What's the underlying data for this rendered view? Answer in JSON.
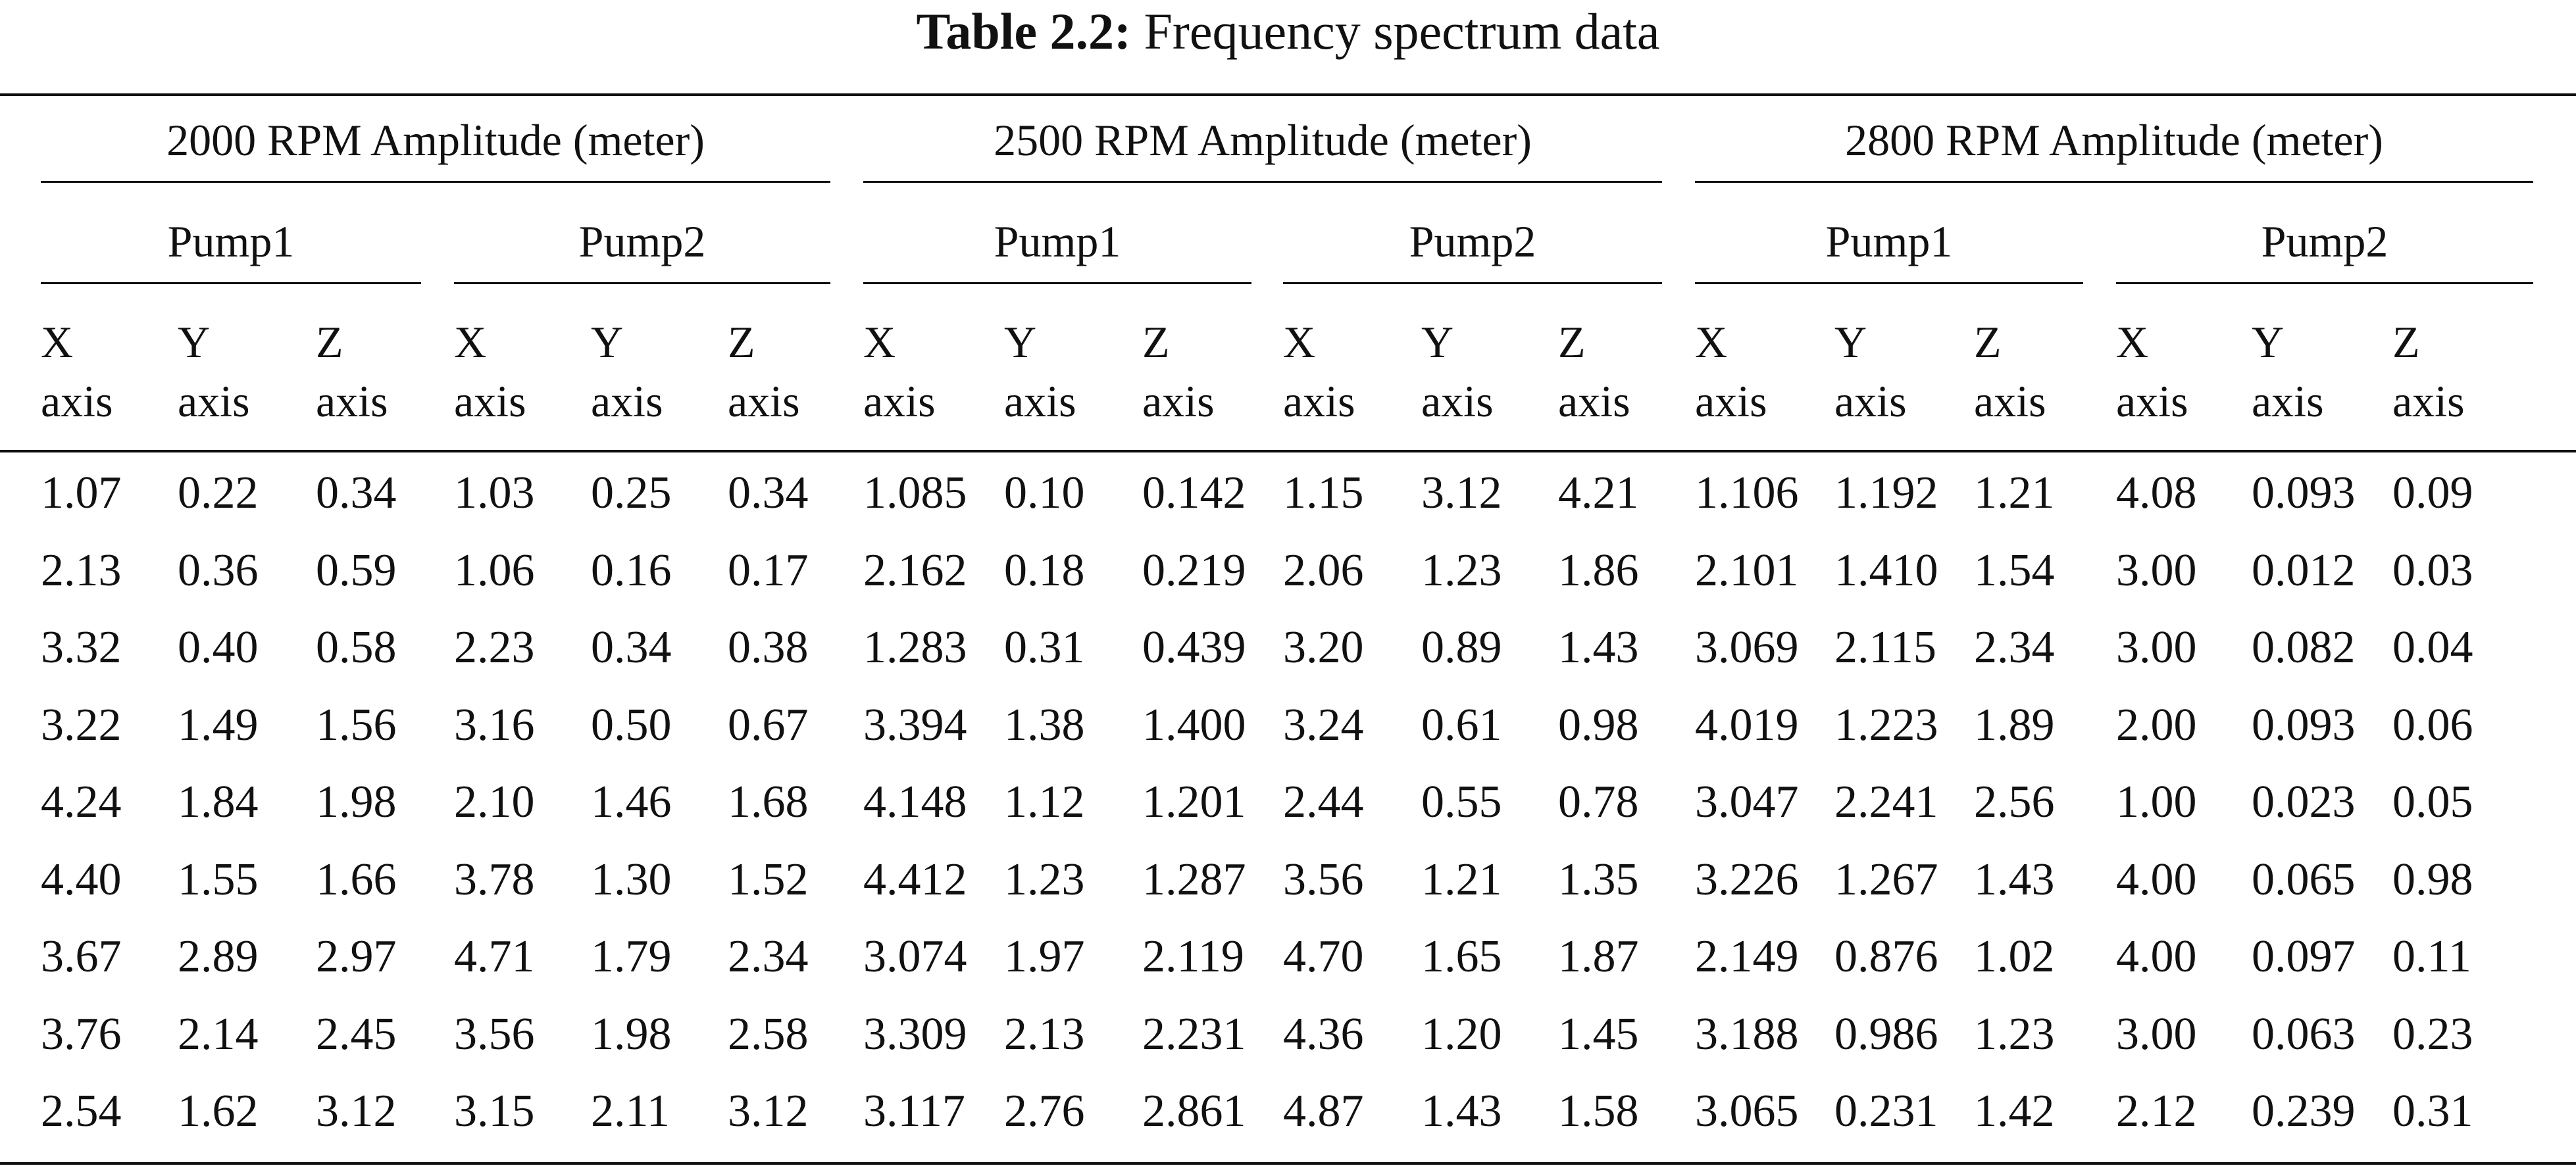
{
  "caption": {
    "label": "Table 2.2:",
    "title": "Frequency spectrum data"
  },
  "groups": [
    {
      "title": "2000 RPM Amplitude (meter)",
      "pumps": [
        "Pump1",
        "Pump2"
      ]
    },
    {
      "title": "2500 RPM Amplitude (meter)",
      "pumps": [
        "Pump1",
        "Pump2"
      ]
    },
    {
      "title": "2800 RPM Amplitude (meter)",
      "pumps": [
        "Pump1",
        "Pump2"
      ]
    }
  ],
  "axis_labels": [
    [
      "X",
      "axis"
    ],
    [
      "Y",
      "axis"
    ],
    [
      "Z",
      "axis"
    ],
    [
      "X",
      "axis"
    ],
    [
      "Y",
      "axis"
    ],
    [
      "Z",
      "axis"
    ],
    [
      "X",
      "axis"
    ],
    [
      "Y",
      "axis"
    ],
    [
      "Z",
      "axis"
    ],
    [
      "X",
      "axis"
    ],
    [
      "Y",
      "axis"
    ],
    [
      "Z",
      "axis"
    ],
    [
      "X",
      "axis"
    ],
    [
      "Y",
      "axis"
    ],
    [
      "Z",
      "axis"
    ],
    [
      "X",
      "axis"
    ],
    [
      "Y",
      "axis"
    ],
    [
      "Z",
      "axis"
    ]
  ],
  "rows": [
    [
      "1.07",
      "0.22",
      "0.34",
      "1.03",
      "0.25",
      "0.34",
      "1.085",
      "0.10",
      "0.142",
      "1.15",
      "3.12",
      "4.21",
      "1.106",
      "1.192",
      "1.21",
      "4.08",
      "0.093",
      "0.09"
    ],
    [
      "2.13",
      "0.36",
      "0.59",
      "1.06",
      "0.16",
      "0.17",
      "2.162",
      "0.18",
      "0.219",
      "2.06",
      "1.23",
      "1.86",
      "2.101",
      "1.410",
      "1.54",
      "3.00",
      "0.012",
      "0.03"
    ],
    [
      "3.32",
      "0.40",
      "0.58",
      "2.23",
      "0.34",
      "0.38",
      "1.283",
      "0.31",
      "0.439",
      "3.20",
      "0.89",
      "1.43",
      "3.069",
      "2.115",
      "2.34",
      "3.00",
      "0.082",
      "0.04"
    ],
    [
      "3.22",
      "1.49",
      "1.56",
      "3.16",
      "0.50",
      "0.67",
      "3.394",
      "1.38",
      "1.400",
      "3.24",
      "0.61",
      "0.98",
      "4.019",
      "1.223",
      "1.89",
      "2.00",
      "0.093",
      "0.06"
    ],
    [
      "4.24",
      "1.84",
      "1.98",
      "2.10",
      "1.46",
      "1.68",
      "4.148",
      "1.12",
      "1.201",
      "2.44",
      "0.55",
      "0.78",
      "3.047",
      "2.241",
      "2.56",
      "1.00",
      "0.023",
      "0.05"
    ],
    [
      "4.40",
      "1.55",
      "1.66",
      "3.78",
      "1.30",
      "1.52",
      "4.412",
      "1.23",
      "1.287",
      "3.56",
      "1.21",
      "1.35",
      "3.226",
      "1.267",
      "1.43",
      "4.00",
      "0.065",
      "0.98"
    ],
    [
      "3.67",
      "2.89",
      "2.97",
      "4.71",
      "1.79",
      "2.34",
      "3.074",
      "1.97",
      "2.119",
      "4.70",
      "1.65",
      "1.87",
      "2.149",
      "0.876",
      "1.02",
      "4.00",
      "0.097",
      "0.11"
    ],
    [
      "3.76",
      "2.14",
      "2.45",
      "3.56",
      "1.98",
      "2.58",
      "3.309",
      "2.13",
      "2.231",
      "4.36",
      "1.20",
      "1.45",
      "3.188",
      "0.986",
      "1.23",
      "3.00",
      "0.063",
      "0.23"
    ],
    [
      "2.54",
      "1.62",
      "3.12",
      "3.15",
      "2.11",
      "3.12",
      "3.117",
      "2.76",
      "2.861",
      "4.87",
      "1.43",
      "1.58",
      "3.065",
      "0.231",
      "1.42",
      "2.12",
      "0.239",
      "0.31"
    ]
  ]
}
